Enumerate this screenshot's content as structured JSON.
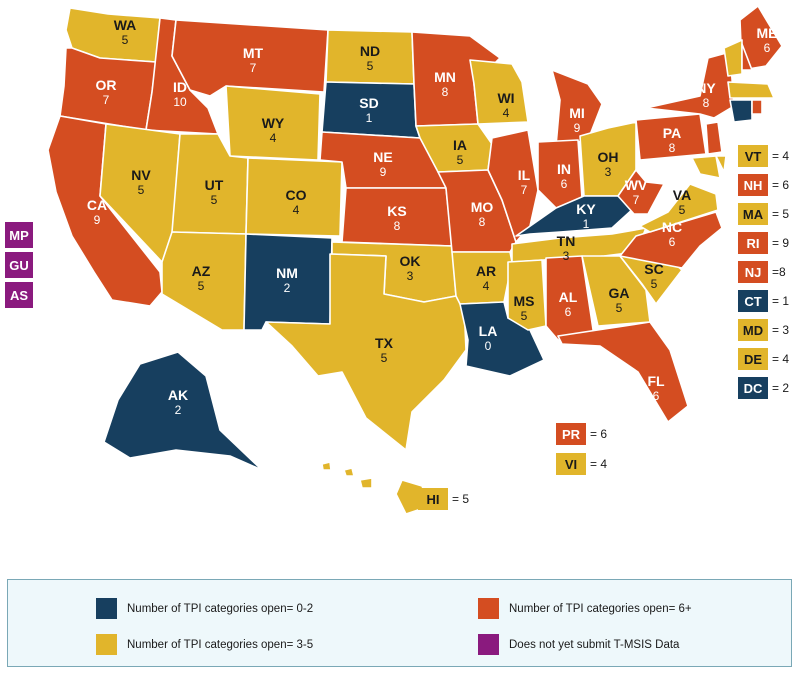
{
  "colors": {
    "low": "#173f5f",
    "mid": "#e1b52b",
    "high": "#d44d21",
    "none": "#8a1a7e"
  },
  "states": [
    {
      "abbr": "WA",
      "value": "5",
      "cat": "mid"
    },
    {
      "abbr": "OR",
      "value": "7",
      "cat": "high"
    },
    {
      "abbr": "CA",
      "value": "9",
      "cat": "high"
    },
    {
      "abbr": "ID",
      "value": "10",
      "cat": "high"
    },
    {
      "abbr": "NV",
      "value": "5",
      "cat": "mid"
    },
    {
      "abbr": "MT",
      "value": "7",
      "cat": "high"
    },
    {
      "abbr": "WY",
      "value": "4",
      "cat": "mid"
    },
    {
      "abbr": "UT",
      "value": "5",
      "cat": "mid"
    },
    {
      "abbr": "CO",
      "value": "4",
      "cat": "mid"
    },
    {
      "abbr": "AZ",
      "value": "5",
      "cat": "mid"
    },
    {
      "abbr": "NM",
      "value": "2",
      "cat": "low"
    },
    {
      "abbr": "ND",
      "value": "5",
      "cat": "mid"
    },
    {
      "abbr": "SD",
      "value": "1",
      "cat": "low"
    },
    {
      "abbr": "NE",
      "value": "9",
      "cat": "high"
    },
    {
      "abbr": "KS",
      "value": "8",
      "cat": "high"
    },
    {
      "abbr": "OK",
      "value": "3",
      "cat": "mid"
    },
    {
      "abbr": "TX",
      "value": "5",
      "cat": "mid"
    },
    {
      "abbr": "MN",
      "value": "8",
      "cat": "high"
    },
    {
      "abbr": "IA",
      "value": "5",
      "cat": "mid"
    },
    {
      "abbr": "MO",
      "value": "8",
      "cat": "high"
    },
    {
      "abbr": "AR",
      "value": "4",
      "cat": "mid"
    },
    {
      "abbr": "LA",
      "value": "0",
      "cat": "low"
    },
    {
      "abbr": "WI",
      "value": "4",
      "cat": "mid"
    },
    {
      "abbr": "IL",
      "value": "7",
      "cat": "high"
    },
    {
      "abbr": "MI",
      "value": "9",
      "cat": "high"
    },
    {
      "abbr": "IN",
      "value": "6",
      "cat": "high"
    },
    {
      "abbr": "OH",
      "value": "3",
      "cat": "mid"
    },
    {
      "abbr": "KY",
      "value": "1",
      "cat": "low"
    },
    {
      "abbr": "TN",
      "value": "3",
      "cat": "mid"
    },
    {
      "abbr": "MS",
      "value": "5",
      "cat": "mid"
    },
    {
      "abbr": "AL",
      "value": "6",
      "cat": "high"
    },
    {
      "abbr": "GA",
      "value": "5",
      "cat": "mid"
    },
    {
      "abbr": "FL",
      "value": "6",
      "cat": "high"
    },
    {
      "abbr": "SC",
      "value": "5",
      "cat": "mid"
    },
    {
      "abbr": "NC",
      "value": "6",
      "cat": "high"
    },
    {
      "abbr": "VA",
      "value": "5",
      "cat": "mid"
    },
    {
      "abbr": "WV",
      "value": "7",
      "cat": "high"
    },
    {
      "abbr": "PA",
      "value": "8",
      "cat": "high"
    },
    {
      "abbr": "NY",
      "value": "8",
      "cat": "high"
    },
    {
      "abbr": "ME",
      "value": "6",
      "cat": "high"
    },
    {
      "abbr": "AK",
      "value": "2",
      "cat": "low"
    }
  ],
  "small_states": [
    {
      "abbr": "VT",
      "value": "= 4",
      "cat": "mid"
    },
    {
      "abbr": "NH",
      "value": "= 6",
      "cat": "high"
    },
    {
      "abbr": "MA",
      "value": "= 5",
      "cat": "mid"
    },
    {
      "abbr": "RI",
      "value": "= 9",
      "cat": "high"
    },
    {
      "abbr": "NJ",
      "value": "=8",
      "cat": "high"
    },
    {
      "abbr": "CT",
      "value": "= 1",
      "cat": "low"
    },
    {
      "abbr": "MD",
      "value": "= 3",
      "cat": "mid"
    },
    {
      "abbr": "DE",
      "value": "= 4",
      "cat": "mid"
    },
    {
      "abbr": "DC",
      "value": "= 2",
      "cat": "low"
    }
  ],
  "territories_boxed": [
    {
      "abbr": "PR",
      "value": "= 6",
      "cat": "high"
    },
    {
      "abbr": "VI",
      "value": "= 4",
      "cat": "mid"
    }
  ],
  "hawaii": {
    "abbr": "HI",
    "value": "= 5",
    "cat": "mid"
  },
  "no_data_territories": [
    "MP",
    "GU",
    "AS"
  ],
  "legend": [
    {
      "label": "Number of TPI categories open= 0-2",
      "cat": "low"
    },
    {
      "label": "Number of TPI categories open= 6+",
      "cat": "high"
    },
    {
      "label": "Number of TPI categories open= 3-5",
      "cat": "mid"
    },
    {
      "label": "Does not yet submit T-MSIS Data",
      "cat": "none"
    }
  ]
}
